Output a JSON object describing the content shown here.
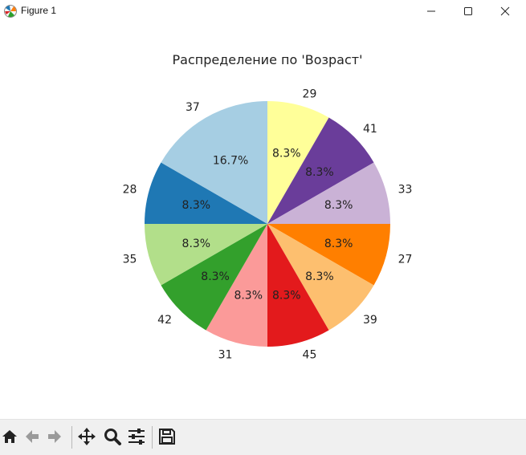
{
  "window": {
    "title": "Figure 1"
  },
  "toolbar": {
    "tools": [
      "home-icon",
      "back-arrow-icon",
      "forward-arrow-icon",
      "pan-icon",
      "zoom-icon",
      "subplots-config-icon",
      "save-icon"
    ]
  },
  "chart_data": {
    "type": "pie",
    "title": "Распределение по 'Возраст'",
    "labels": [
      "29",
      "41",
      "33",
      "27",
      "39",
      "45",
      "31",
      "42",
      "35",
      "28",
      "37"
    ],
    "values": [
      1,
      1,
      1,
      1,
      1,
      1,
      1,
      1,
      1,
      1,
      2
    ],
    "percent_labels": [
      "8.3%",
      "8.3%",
      "8.3%",
      "8.3%",
      "8.3%",
      "8.3%",
      "8.3%",
      "8.3%",
      "8.3%",
      "8.3%",
      "16.7%"
    ],
    "colors": [
      "#ffff99",
      "#6a3d9a",
      "#cab2d6",
      "#ff7f00",
      "#fdbf6f",
      "#e31a1c",
      "#fb9a99",
      "#33a02c",
      "#b2df8a",
      "#1f78b4",
      "#a6cee3"
    ],
    "start_angle_deg": 90,
    "direction": "clockwise"
  }
}
